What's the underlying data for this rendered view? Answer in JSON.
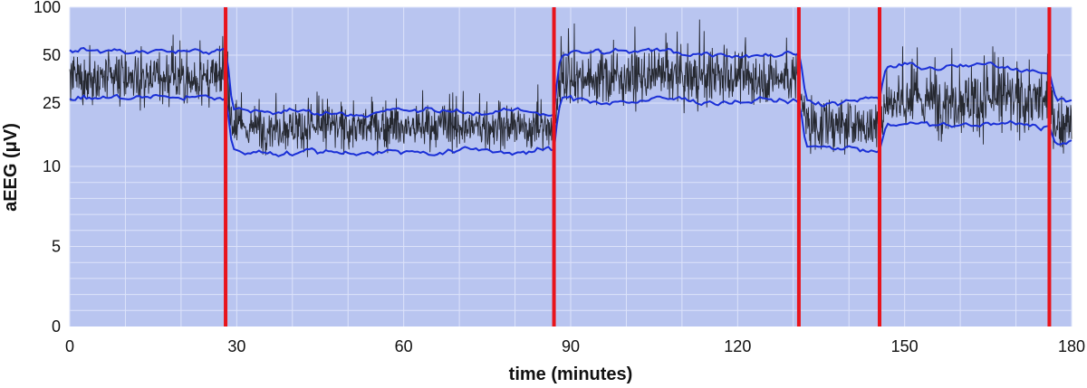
{
  "chart_data": {
    "type": "line",
    "xlabel": "time (minutes)",
    "ylabel": "aEEG (μV)",
    "xlim": [
      0,
      180
    ],
    "ylim": [
      0,
      100
    ],
    "y_scale": "aEEG semi-log (linear 0-10, log 10-100)",
    "x_ticks": [
      0,
      30,
      60,
      90,
      120,
      150,
      180
    ],
    "y_ticks": [
      0,
      5,
      10,
      25,
      50,
      100
    ],
    "y_tick_labels": [
      "0",
      "5",
      "10",
      "25",
      "50",
      "100"
    ],
    "grid": true,
    "background_color": "#b9c5f0",
    "trace_color": "#000000",
    "envelope_color": "#1a2fd6",
    "marker_color": "#e8141c",
    "vertical_markers": [
      28,
      87,
      131,
      145.5,
      176
    ],
    "segments": [
      {
        "start": 0,
        "end": 28,
        "median": 35,
        "upper": 53,
        "lower": 27
      },
      {
        "start": 28,
        "end": 87,
        "median": 17.5,
        "upper": 22,
        "lower": 12.5
      },
      {
        "start": 87,
        "end": 131,
        "median": 36,
        "upper": 52,
        "lower": 26
      },
      {
        "start": 131,
        "end": 145.5,
        "median": 18,
        "upper": 26,
        "lower": 13
      },
      {
        "start": 145.5,
        "end": 176,
        "median": 26,
        "upper": 42,
        "lower": 18
      },
      {
        "start": 176,
        "end": 180,
        "median": 18,
        "upper": 26,
        "lower": 14
      }
    ],
    "series": [
      {
        "values": []
      },
      {
        "values": []
      },
      {
        "values": []
      }
    ]
  }
}
